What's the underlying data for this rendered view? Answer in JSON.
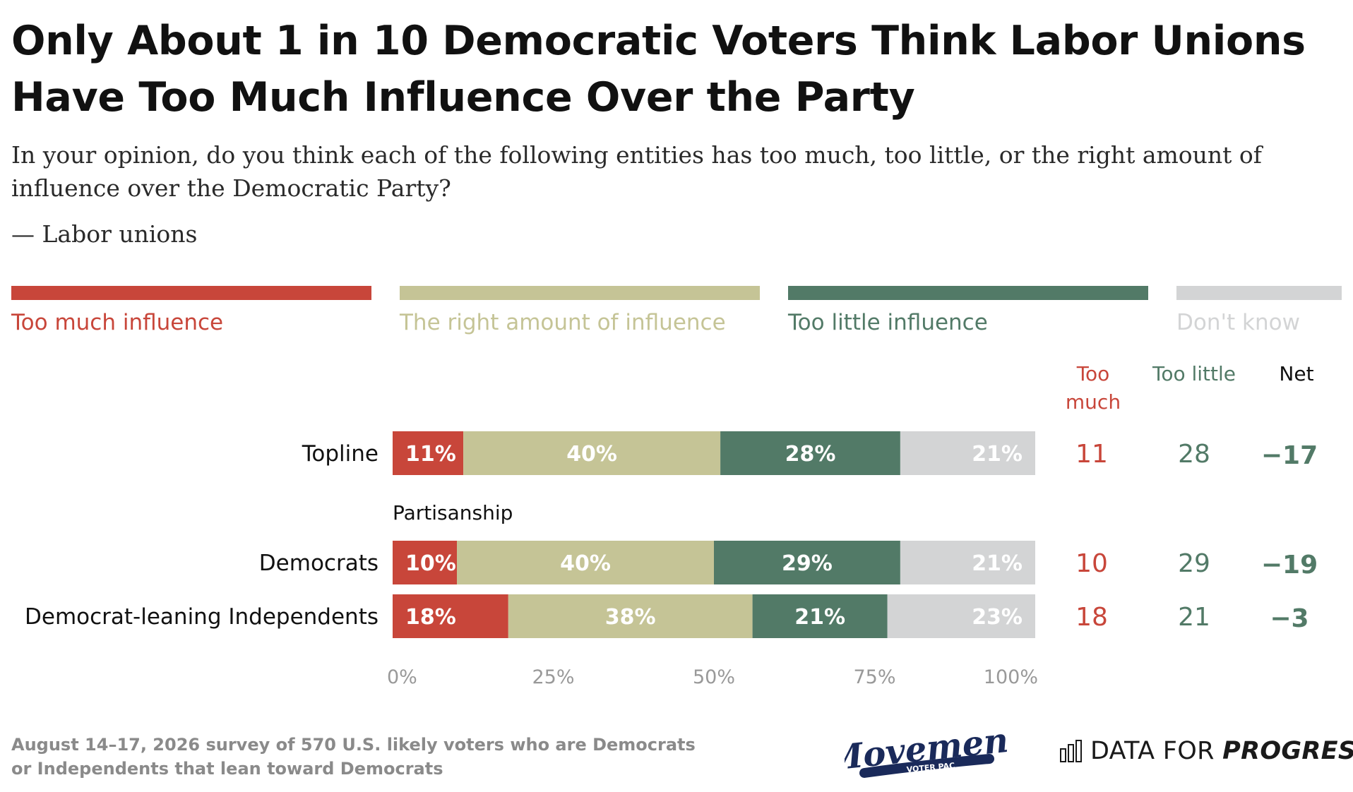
{
  "title": "Only About 1 in 10 Democratic Voters Think Labor Unions Have Too Much Influence Over the Party",
  "subtitle": "In your opinion, do you think each of the following entities has too much, too little, or the right amount of influence over the Democratic Party?",
  "subitem": "— Labor unions",
  "legend": [
    {
      "label": "Too much influence",
      "color": "#c8463a"
    },
    {
      "label": "The right amount of influence",
      "color": "#c5c496"
    },
    {
      "label": "Too little influence",
      "color": "#527a67"
    },
    {
      "label": "Don't know",
      "color": "#d3d4d5"
    }
  ],
  "columns": {
    "too_much": "Too much",
    "too_little": "Too little",
    "net": "Net"
  },
  "chart_data": {
    "type": "bar",
    "orientation": "horizontal",
    "stacked": true,
    "categories": [
      "Topline",
      "Democrats",
      "Democrat-leaning Independents"
    ],
    "group_label": "Partisanship",
    "series": [
      {
        "name": "Too much influence",
        "values": [
          11,
          10,
          18
        ],
        "color": "#c8463a"
      },
      {
        "name": "The right amount of influence",
        "values": [
          40,
          40,
          38
        ],
        "color": "#c5c496"
      },
      {
        "name": "Too little influence",
        "values": [
          28,
          29,
          21
        ],
        "color": "#527a67"
      },
      {
        "name": "Don't know",
        "values": [
          21,
          21,
          23
        ],
        "color": "#d3d4d5"
      }
    ],
    "xlim": [
      0,
      100
    ],
    "xticks": [
      "0%",
      "25%",
      "50%",
      "75%",
      "100%"
    ],
    "too_much": [
      "11",
      "10",
      "18"
    ],
    "too_little": [
      "28",
      "29",
      "21"
    ],
    "net": [
      "−17",
      "−19",
      "−3"
    ]
  },
  "source": "August 14–17, 2026 survey of 570 U.S. likely voters who are Democrats or Independents that lean toward Democrats",
  "logos": {
    "movement": "Movement",
    "movement_sub": "VOTER PAC",
    "dfp_light": "DATA FOR ",
    "dfp_bold": "PROGRESS"
  }
}
